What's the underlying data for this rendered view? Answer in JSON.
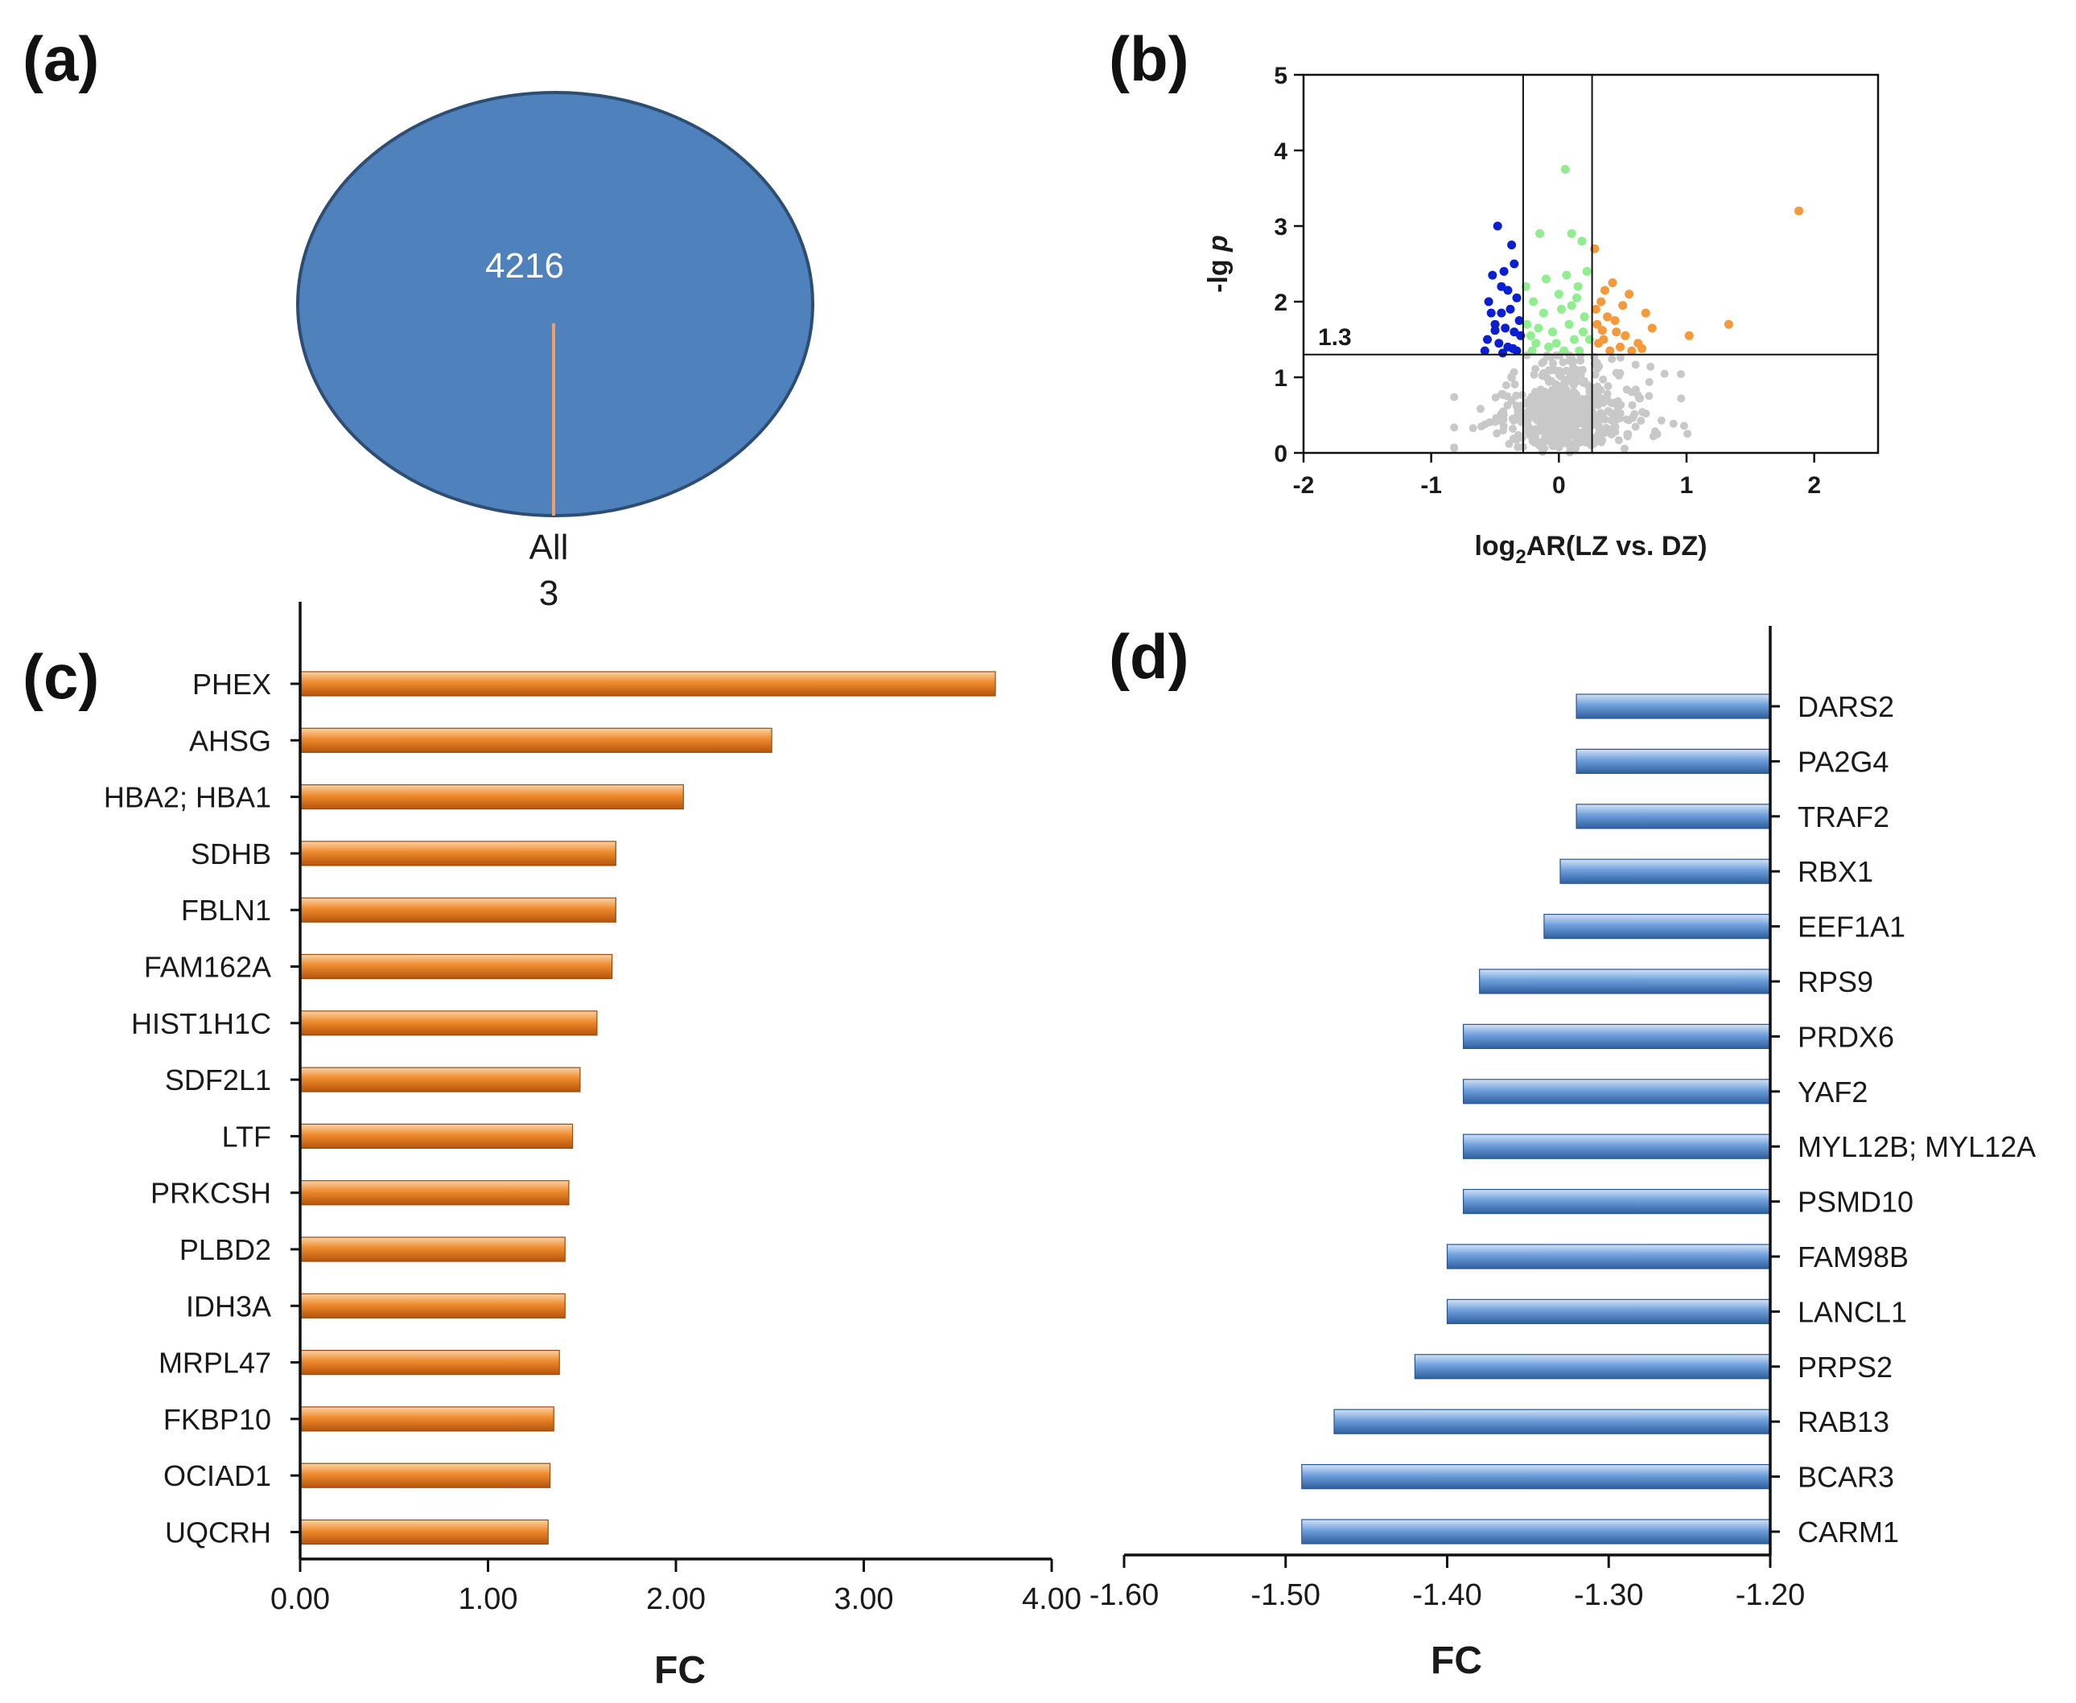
{
  "colors": {
    "pie_fill": "#4F81BD",
    "pie_edge": "#2E4D73",
    "pie_line": "#F0A060",
    "up_bar": "#E8761C",
    "down_bar": "#5B8FD2",
    "volcano_down": "#0A1ED2",
    "volcano_up": "#F49A3C",
    "volcano_mid": "#90EE90",
    "volcano_ns": "#C8C8C8",
    "axis": "#111111"
  },
  "chart_data": [
    {
      "panel": "(a)",
      "type": "pie",
      "slices": [
        {
          "label": "",
          "value": 4216
        },
        {
          "label": "All",
          "value": 3
        }
      ],
      "center_label": "4216",
      "outside_label": "All",
      "outside_value": "3"
    },
    {
      "panel": "(b)",
      "type": "scatter",
      "title": "",
      "xlabel_prefix": "log",
      "xlabel_sub": "2",
      "xlabel_rest": "AR(LZ vs. DZ)",
      "ylabel_main": "-lg ",
      "ylabel_italic": "p",
      "xlim": [
        -2,
        2.5
      ],
      "ylim": [
        0,
        5
      ],
      "xticks": [
        -2,
        -1,
        0,
        1,
        2
      ],
      "xtick_labels": [
        "-2",
        "-1",
        "0",
        "1",
        "2"
      ],
      "yticks": [
        0,
        1,
        2,
        3,
        4,
        5
      ],
      "ytick_labels": [
        "0",
        "1",
        "2",
        "3",
        "4",
        "5"
      ],
      "threshold_y": 1.3,
      "threshold_label": "1.3",
      "threshold_x": [
        -0.28,
        0.26
      ],
      "point_groups": [
        {
          "name": "down-regulated",
          "color_key": "volcano_down",
          "points": [
            [
              -0.48,
              3.0
            ],
            [
              -0.37,
              2.75
            ],
            [
              -0.52,
              2.35
            ],
            [
              -0.45,
              2.2
            ],
            [
              -0.4,
              2.15
            ],
            [
              -0.55,
              2.0
            ],
            [
              -0.33,
              2.05
            ],
            [
              -0.45,
              1.85
            ],
            [
              -0.38,
              1.9
            ],
            [
              -0.5,
              1.7
            ],
            [
              -0.42,
              1.65
            ],
            [
              -0.35,
              1.6
            ],
            [
              -0.56,
              1.5
            ],
            [
              -0.3,
              1.55
            ],
            [
              -0.47,
              1.45
            ],
            [
              -0.4,
              1.4
            ],
            [
              -0.33,
              1.35
            ],
            [
              -0.58,
              1.35
            ],
            [
              -0.44,
              1.32
            ],
            [
              -0.36,
              1.38
            ],
            [
              -0.5,
              1.62
            ],
            [
              -0.31,
              1.75
            ],
            [
              -0.53,
              1.85
            ],
            [
              -0.43,
              2.4
            ],
            [
              -0.35,
              2.5
            ]
          ]
        },
        {
          "name": "up-regulated",
          "color_key": "volcano_up",
          "points": [
            [
              1.88,
              3.2
            ],
            [
              1.33,
              1.7
            ],
            [
              1.02,
              1.55
            ],
            [
              0.73,
              1.65
            ],
            [
              0.68,
              1.85
            ],
            [
              0.62,
              1.45
            ],
            [
              0.55,
              2.1
            ],
            [
              0.5,
              1.95
            ],
            [
              0.45,
              1.6
            ],
            [
              0.42,
              2.25
            ],
            [
              0.38,
              1.8
            ],
            [
              0.35,
              1.5
            ],
            [
              0.33,
              2.0
            ],
            [
              0.3,
              1.7
            ],
            [
              0.28,
              2.7
            ],
            [
              0.48,
              1.4
            ],
            [
              0.57,
              1.35
            ],
            [
              0.4,
              1.35
            ],
            [
              0.31,
              1.45
            ],
            [
              0.36,
              2.15
            ],
            [
              0.44,
              1.75
            ],
            [
              0.52,
              1.55
            ],
            [
              0.29,
              1.9
            ],
            [
              0.65,
              1.38
            ],
            [
              0.34,
              1.62
            ]
          ]
        },
        {
          "name": "small-change-significant",
          "color_key": "volcano_mid",
          "points": [
            [
              0.05,
              3.75
            ],
            [
              -0.15,
              2.9
            ],
            [
              0.1,
              2.9
            ],
            [
              0.18,
              2.8
            ],
            [
              -0.1,
              2.3
            ],
            [
              0.15,
              2.2
            ],
            [
              -0.2,
              2.0
            ],
            [
              0.02,
              1.9
            ],
            [
              0.2,
              1.8
            ],
            [
              -0.05,
              1.6
            ],
            [
              0.12,
              1.5
            ],
            [
              -0.18,
              1.45
            ],
            [
              -0.25,
              1.7
            ],
            [
              0.22,
              2.4
            ],
            [
              0.0,
              2.1
            ],
            [
              -0.12,
              1.85
            ],
            [
              0.08,
              1.7
            ],
            [
              -0.22,
              1.55
            ],
            [
              0.16,
              1.35
            ],
            [
              -0.08,
              1.4
            ],
            [
              0.04,
              1.35
            ],
            [
              0.24,
              1.5
            ],
            [
              -0.26,
              2.2
            ],
            [
              0.14,
              2.05
            ],
            [
              -0.16,
              1.65
            ],
            [
              0.06,
              2.35
            ],
            [
              -0.02,
              1.45
            ],
            [
              0.19,
              1.6
            ],
            [
              -0.21,
              1.35
            ],
            [
              0.1,
              1.95
            ]
          ]
        }
      ],
      "ns_cloud": {
        "count": 600,
        "x_sd": 0.22,
        "x_sd_outer": 0.45,
        "y_max": 1.29
      }
    },
    {
      "panel": "(c)",
      "type": "bar",
      "orientation": "horizontal",
      "xlabel": "FC",
      "xlim": [
        0,
        4
      ],
      "xticks": [
        0,
        1,
        2,
        3,
        4
      ],
      "xtick_labels": [
        "0.00",
        "1.00",
        "2.00",
        "3.00",
        "4.00"
      ],
      "categories": [
        "PHEX",
        "AHSG",
        "HBA2; HBA1",
        "SDHB",
        "FBLN1",
        "FAM162A",
        "HIST1H1C",
        "SDF2L1",
        "LTF",
        "PRKCSH",
        "PLBD2",
        "IDH3A",
        "MRPL47",
        "FKBP10",
        "OCIAD1",
        "UQCRH"
      ],
      "values": [
        3.7,
        2.51,
        2.04,
        1.68,
        1.68,
        1.66,
        1.58,
        1.49,
        1.45,
        1.43,
        1.41,
        1.41,
        1.38,
        1.35,
        1.33,
        1.32
      ]
    },
    {
      "panel": "(d)",
      "type": "bar",
      "orientation": "horizontal",
      "xlabel": "FC",
      "xlim": [
        -1.6,
        -1.2
      ],
      "xticks": [
        -1.6,
        -1.5,
        -1.4,
        -1.3,
        -1.2
      ],
      "xtick_labels": [
        "-1.60",
        "-1.50",
        "-1.40",
        "-1.30",
        "-1.20"
      ],
      "categories": [
        "DARS2",
        "PA2G4",
        "TRAF2",
        "RBX1",
        "EEF1A1",
        "RPS9",
        "PRDX6",
        "YAF2",
        "MYL12B; MYL12A",
        "PSMD10",
        "FAM98B",
        "LANCL1",
        "PRPS2",
        "RAB13",
        "BCAR3",
        "CARM1"
      ],
      "values": [
        -1.32,
        -1.32,
        -1.32,
        -1.33,
        -1.34,
        -1.38,
        -1.39,
        -1.39,
        -1.39,
        -1.39,
        -1.4,
        -1.4,
        -1.42,
        -1.47,
        -1.49,
        -1.49
      ]
    }
  ]
}
